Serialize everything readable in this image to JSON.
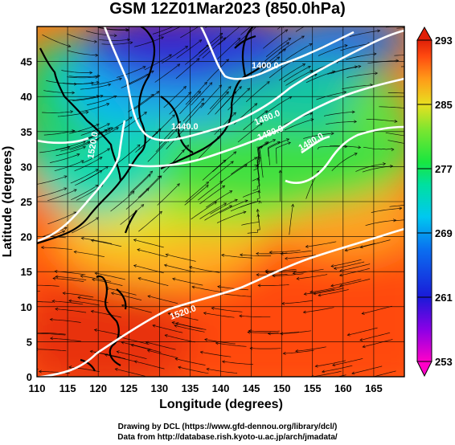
{
  "title": "GSM 12Z01Mar2023 (850.0hPa)",
  "x_axis": {
    "label": "Longitude (degrees)",
    "ticks": [
      "110",
      "115",
      "120",
      "125",
      "130",
      "135",
      "140",
      "145",
      "150",
      "155",
      "160",
      "165"
    ]
  },
  "y_axis": {
    "label": "Latitude  (degrees)",
    "ticks": [
      "0",
      "5",
      "10",
      "15",
      "20",
      "25",
      "30",
      "35",
      "40",
      "45"
    ]
  },
  "colorbar": {
    "ticks": [
      "293",
      "285",
      "277",
      "269",
      "261",
      "253"
    ],
    "colors": [
      "#ff00c8",
      "#8a00e6",
      "#1a1ad8",
      "#0a70f0",
      "#00c8f0",
      "#00e0a0",
      "#18e640",
      "#7ae630",
      "#e8e020",
      "#ff9a18",
      "#ff4a10",
      "#e02008"
    ]
  },
  "contour_labels": [
    "1400.0",
    "1440.0",
    "1480.0",
    "1480.0",
    "1520.0",
    "1520.0",
    "1480.0"
  ],
  "credits": [
    "Drawing by DCL (https://www.gfd-dennou.org/library/dcl/)",
    "Data from http://database.rish.kyoto-u.ac.jp/arch/jmadata/"
  ],
  "chart_data": {
    "type": "heatmap",
    "title": "GSM 12Z01Mar2023 (850.0hPa)",
    "xlabel": "Longitude (degrees)",
    "ylabel": "Latitude  (degrees)",
    "xlim": [
      110,
      170
    ],
    "ylim": [
      0,
      50
    ],
    "colorbar_range": [
      253,
      293
    ],
    "colorbar_ticks": [
      293,
      285,
      277,
      269,
      261,
      253
    ],
    "contour_values": [
      1400,
      1440,
      1480,
      1520
    ],
    "vector_overlay": "streamlines"
  }
}
